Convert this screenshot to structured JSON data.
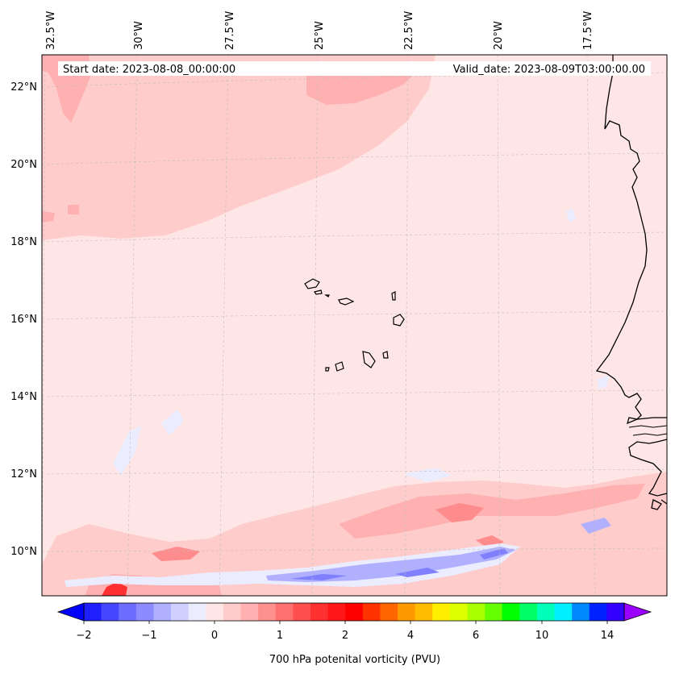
{
  "map": {
    "start_label": "Start date: 2023-08-08_00:00:00",
    "valid_label": "Valid_date: 2023-08-09T03:00:00.00",
    "lon_labels": [
      "32.5°W",
      "30°W",
      "27.5°W",
      "25°W",
      "22.5°W",
      "20°W",
      "17.5°W"
    ],
    "lat_labels": [
      "22°N",
      "20°N",
      "18°N",
      "16°N",
      "14°N",
      "12°N",
      "10°N"
    ]
  },
  "colorbar": {
    "label": "700 hPa potenital vorticity (PVU)",
    "ticks": [
      "−2",
      "−1",
      "0",
      "1",
      "2",
      "4",
      "6",
      "10",
      "14"
    ],
    "colors": [
      "#0000ff",
      "#2020ff",
      "#4646ff",
      "#6c6cff",
      "#8c8cff",
      "#b0b0ff",
      "#d0d0ff",
      "#ececff",
      "#ffe6e6",
      "#ffcccc",
      "#ffb0b0",
      "#ff9090",
      "#ff7070",
      "#ff5050",
      "#ff3030",
      "#ff1818",
      "#ff0000",
      "#ff3300",
      "#ff6600",
      "#ff9900",
      "#ffbb00",
      "#ffee00",
      "#ddff00",
      "#aaff00",
      "#66ff00",
      "#00ff00",
      "#00ff66",
      "#00ffbb",
      "#00eeff",
      "#0088ff",
      "#0022ff",
      "#3300ff",
      "#9900ff"
    ]
  },
  "field_colors": {
    "background": "#ffe6e6",
    "pos1": "#ffcccc",
    "pos2": "#ffb0b0",
    "pos3": "#ff8c8c",
    "pos4": "#ff3030",
    "neg1": "#ececff",
    "neg2": "#b0b0ff",
    "neg3": "#8080ff",
    "coast": "#000000"
  }
}
